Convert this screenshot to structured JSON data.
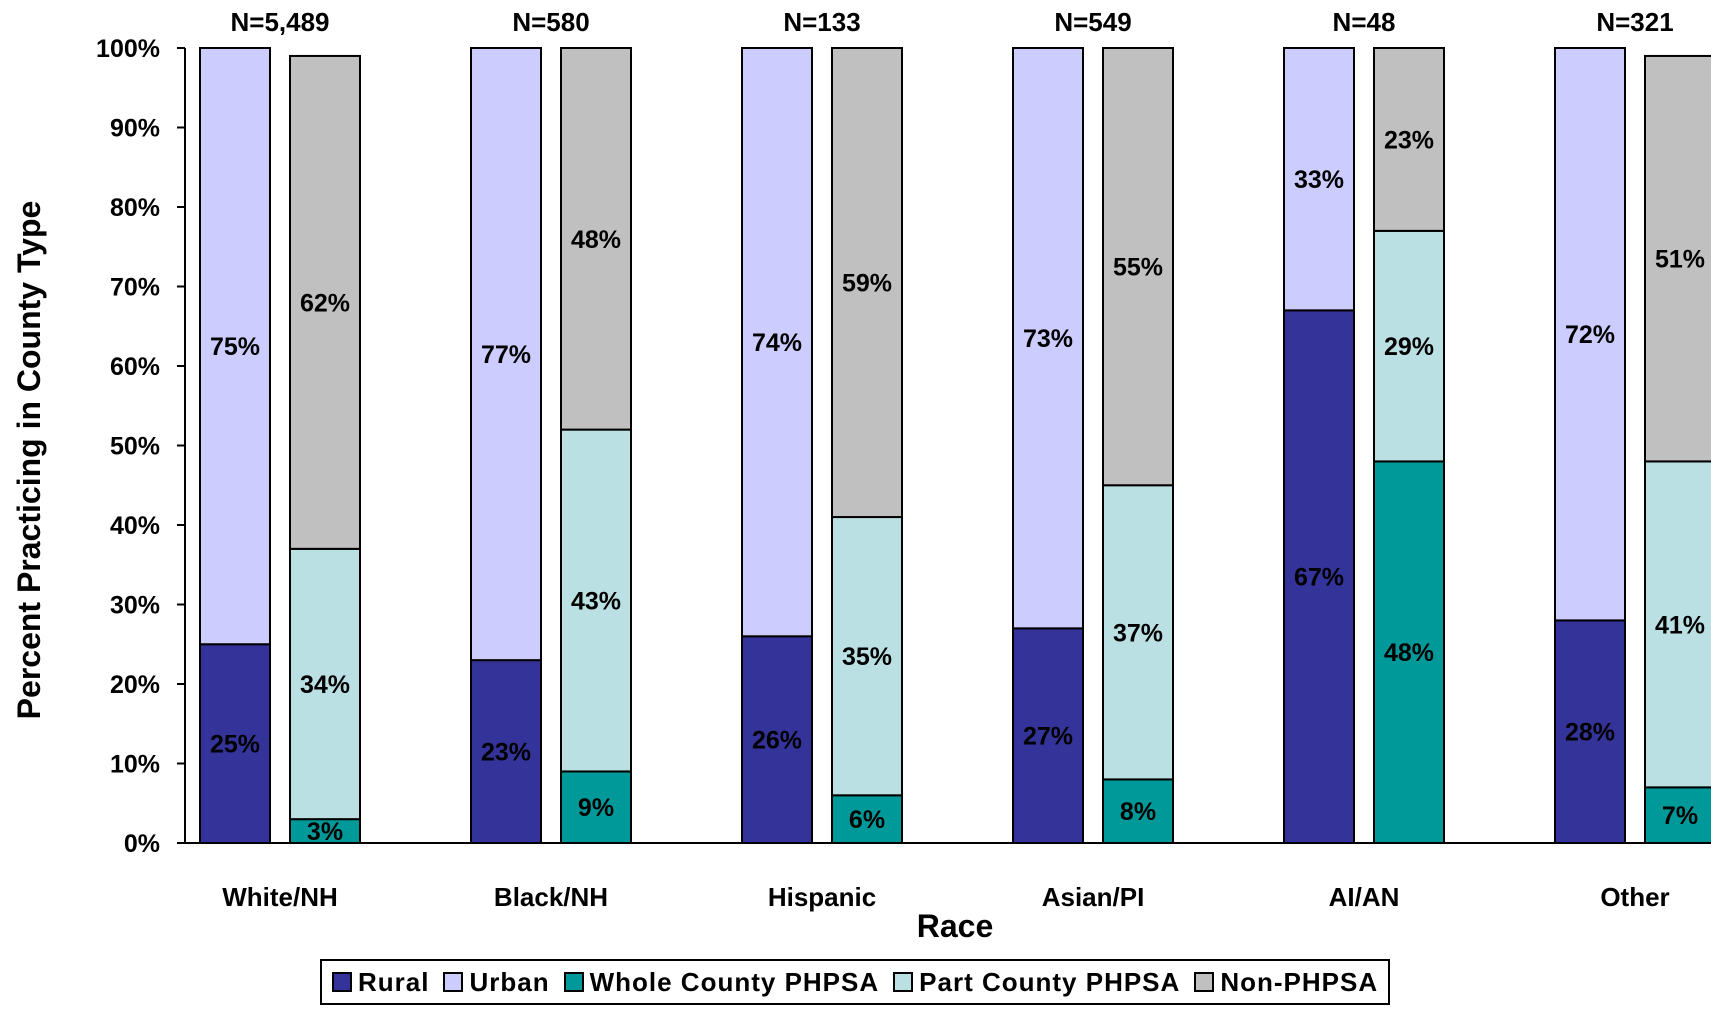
{
  "chart_data": {
    "type": "bar",
    "stacked": true,
    "title": "",
    "xlabel": "Race",
    "ylabel": "Percent Practicing in County Type",
    "ylim": [
      0,
      100
    ],
    "yticks": [
      "0%",
      "10%",
      "20%",
      "30%",
      "40%",
      "50%",
      "60%",
      "70%",
      "80%",
      "90%",
      "100%"
    ],
    "categories": [
      "White/NH",
      "Black/NH",
      "Hispanic",
      "Asian/PI",
      "AI/AN",
      "Other"
    ],
    "n_labels": [
      "N=5,489",
      "N=580",
      "N=133",
      "N=549",
      "N=48",
      "N=321"
    ],
    "colors": {
      "Rural": "#333399",
      "Urban": "#ccccff",
      "Whole County PHPSA": "#009999",
      "Part County PHPSA": "#bbe0e3",
      "Non-PHPSA": "#c0c0c0"
    },
    "groups": [
      {
        "name": "urbanicity",
        "series": [
          {
            "name": "Rural",
            "values": [
              25,
              23,
              26,
              27,
              67,
              28
            ],
            "labels": [
              "25%",
              "23%",
              "26%",
              "27%",
              "67%",
              "28%"
            ]
          },
          {
            "name": "Urban",
            "values": [
              75,
              77,
              74,
              73,
              33,
              72
            ],
            "labels": [
              "75%",
              "77%",
              "74%",
              "73%",
              "33%",
              "72%"
            ]
          }
        ]
      },
      {
        "name": "phpsa",
        "series": [
          {
            "name": "Whole County PHPSA",
            "values": [
              3,
              9,
              6,
              8,
              48,
              7
            ],
            "labels": [
              "3%",
              "9%",
              "6%",
              "8%",
              "48%",
              "7%"
            ]
          },
          {
            "name": "Part County PHPSA",
            "values": [
              34,
              43,
              35,
              37,
              29,
              41
            ],
            "labels": [
              "34%",
              "43%",
              "35%",
              "37%",
              "29%",
              "41%"
            ]
          },
          {
            "name": "Non-PHPSA",
            "values": [
              62,
              48,
              59,
              55,
              23,
              51
            ],
            "labels": [
              "62%",
              "48%",
              "59%",
              "55%",
              "23%",
              "51%"
            ]
          }
        ]
      }
    ],
    "legend": {
      "position": "bottom",
      "items": [
        "Rural",
        "Urban",
        "Whole County PHPSA",
        "Part County PHPSA",
        "Non-PHPSA"
      ]
    },
    "grid": false
  }
}
